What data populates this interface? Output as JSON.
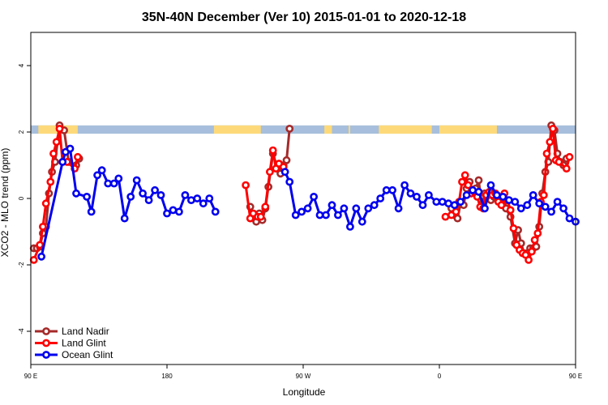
{
  "chart_data": {
    "type": "line",
    "title": "35N-40N December (Ver 10)   2015-01-01 to 2020-12-18",
    "xlabel": "Longitude",
    "ylabel": "XCO2 - MLO trend (ppm)",
    "xlim": [
      90,
      450
    ],
    "ylim": [
      -5,
      5
    ],
    "x_ticks": [
      {
        "value": 90,
        "label": "90 E"
      },
      {
        "value": 180,
        "label": "180"
      },
      {
        "value": 270,
        "label": "90 W"
      },
      {
        "value": 360,
        "label": "0"
      },
      {
        "value": 450,
        "label": "90 E"
      },
      {
        "value": 540,
        "label": "180"
      }
    ],
    "y_ticks": [
      {
        "value": -4,
        "label": "-4"
      },
      {
        "value": -2,
        "label": "-2"
      },
      {
        "value": 0,
        "label": "0"
      },
      {
        "value": 2,
        "label": "2"
      },
      {
        "value": 4,
        "label": "4"
      }
    ],
    "grid": false,
    "legend_position": "bottom-left",
    "land_ocean_strip": {
      "y_min": 1.95,
      "y_max": 2.2,
      "ocean_color": "#a7bfdc",
      "land_color": "#fdd97a",
      "land_ranges": [
        [
          95,
          121
        ],
        [
          211,
          242
        ],
        [
          284,
          289
        ],
        [
          300,
          301
        ],
        [
          320,
          355
        ],
        [
          360,
          398
        ],
        [
          466,
          480
        ]
      ]
    },
    "series": [
      {
        "name": "Land Nadir",
        "color": "#a52a2a",
        "segments": [
          [
            [
              92,
              -1.5
            ],
            [
              94,
              -1.5
            ],
            [
              96,
              -1.45
            ],
            [
              98,
              -1.05
            ],
            [
              100,
              -0.85
            ],
            [
              102,
              0.15
            ],
            [
              104,
              0.8
            ],
            [
              106,
              1.1
            ],
            [
              109,
              2.2
            ],
            [
              112,
              2.05
            ],
            [
              115,
              1.1
            ],
            [
              120,
              1.0
            ],
            [
              122,
              1.2
            ]
          ],
          [
            [
              235,
              -0.25
            ],
            [
              237,
              -0.55
            ],
            [
              239,
              -0.7
            ],
            [
              241,
              -0.45
            ],
            [
              243,
              -0.65
            ],
            [
              245,
              -0.3
            ],
            [
              247,
              0.35
            ],
            [
              250,
              1.35
            ],
            [
              253,
              0.9
            ],
            [
              255,
              0.75
            ],
            [
              257,
              1.0
            ],
            [
              259,
              1.15
            ],
            [
              261,
              2.1
            ]
          ],
          [
            [
              368,
              -0.3
            ],
            [
              370,
              -0.5
            ],
            [
              372,
              -0.6
            ],
            [
              374,
              -0.15
            ],
            [
              376,
              -0.2
            ],
            [
              378,
              0.3
            ],
            [
              380,
              0.5
            ],
            [
              382,
              0.25
            ],
            [
              384,
              0.3
            ],
            [
              386,
              0.55
            ],
            [
              388,
              -0.25
            ],
            [
              390,
              0.15
            ],
            [
              392,
              0.1
            ],
            [
              394,
              -0.05
            ],
            [
              396,
              0.05
            ],
            [
              398,
              0.1
            ],
            [
              400,
              -0.05
            ],
            [
              402,
              -0.2
            ],
            [
              404,
              -0.3
            ],
            [
              407,
              -0.55
            ],
            [
              410,
              -1.35
            ],
            [
              412,
              -0.95
            ],
            [
              414,
              -1.35
            ],
            [
              416,
              -1.65
            ],
            [
              418,
              -1.65
            ],
            [
              420,
              -1.5
            ],
            [
              422,
              -1.5
            ],
            [
              424,
              -1.45
            ],
            [
              426,
              -0.85
            ],
            [
              428,
              0.15
            ],
            [
              430,
              0.8
            ],
            [
              432,
              1.1
            ],
            [
              434,
              2.2
            ],
            [
              436,
              2.05
            ],
            [
              438,
              1.35
            ],
            [
              440,
              1.1
            ],
            [
              442,
              1.0
            ],
            [
              444,
              1.2
            ]
          ]
        ]
      },
      {
        "name": "Land Glint",
        "color": "#ff0000",
        "segments": [
          [
            [
              92,
              -1.85
            ],
            [
              96,
              -1.4
            ],
            [
              98,
              -0.85
            ],
            [
              100,
              -0.15
            ],
            [
              103,
              0.5
            ],
            [
              105,
              1.35
            ],
            [
              107,
              1.7
            ],
            [
              109,
              2.1
            ],
            [
              111,
              1.1
            ],
            [
              114,
              1.1
            ],
            [
              119,
              0.9
            ],
            [
              121,
              1.25
            ]
          ],
          [
            [
              232,
              0.4
            ],
            [
              235,
              -0.6
            ],
            [
              237,
              -0.45
            ],
            [
              240,
              -0.55
            ],
            [
              242,
              -0.55
            ],
            [
              245,
              -0.25
            ],
            [
              248,
              0.8
            ],
            [
              250,
              1.45
            ],
            [
              252,
              0.9
            ],
            [
              254,
              1.05
            ],
            [
              257,
              0.95
            ]
          ],
          [
            [
              364,
              -0.55
            ],
            [
              368,
              -0.5
            ],
            [
              371,
              -0.4
            ],
            [
              373,
              -0.1
            ],
            [
              375,
              0.5
            ],
            [
              377,
              0.7
            ],
            [
              379,
              0.4
            ],
            [
              381,
              0.15
            ],
            [
              383,
              0.2
            ],
            [
              385,
              0.05
            ],
            [
              387,
              -0.25
            ],
            [
              389,
              -0.3
            ],
            [
              391,
              0.1
            ],
            [
              393,
              0.2
            ],
            [
              395,
              0.1
            ],
            [
              397,
              0.15
            ],
            [
              399,
              -0.1
            ],
            [
              401,
              -0.2
            ],
            [
              403,
              0.15
            ],
            [
              405,
              -0.05
            ],
            [
              407,
              -0.35
            ],
            [
              409,
              -0.9
            ],
            [
              411,
              -1.4
            ],
            [
              413,
              -1.55
            ],
            [
              415,
              -1.65
            ],
            [
              417,
              -1.7
            ],
            [
              419,
              -1.85
            ],
            [
              421,
              -1.6
            ],
            [
              423,
              -1.25
            ],
            [
              425,
              -1.05
            ],
            [
              427,
              -0.1
            ],
            [
              429,
              0.1
            ],
            [
              431,
              1.35
            ],
            [
              433,
              1.7
            ],
            [
              435,
              2.1
            ],
            [
              437,
              1.15
            ],
            [
              439,
              1.1
            ],
            [
              444,
              0.9
            ],
            [
              446,
              1.25
            ]
          ]
        ]
      },
      {
        "name": "Ocean Glint",
        "color": "#0000ee",
        "segments": [
          [
            [
              97,
              -1.75
            ],
            [
              111,
              1.1
            ],
            [
              113,
              1.4
            ],
            [
              116,
              1.5
            ],
            [
              120,
              0.15
            ],
            [
              127,
              0.05
            ],
            [
              130,
              -0.4
            ],
            [
              134,
              0.7
            ],
            [
              137,
              0.85
            ],
            [
              141,
              0.45
            ],
            [
              145,
              0.45
            ],
            [
              148,
              0.6
            ],
            [
              152,
              -0.6
            ],
            [
              156,
              0.05
            ],
            [
              160,
              0.55
            ],
            [
              164,
              0.15
            ],
            [
              168,
              -0.05
            ],
            [
              172,
              0.25
            ],
            [
              176,
              0.1
            ],
            [
              180,
              -0.45
            ],
            [
              184,
              -0.35
            ],
            [
              188,
              -0.4
            ],
            [
              192,
              0.1
            ],
            [
              196,
              -0.05
            ],
            [
              200,
              0.0
            ],
            [
              204,
              -0.15
            ],
            [
              208,
              0.0
            ],
            [
              212,
              -0.4
            ]
          ],
          [
            [
              258,
              0.8
            ],
            [
              261,
              0.5
            ],
            [
              265,
              -0.5
            ],
            [
              269,
              -0.4
            ],
            [
              273,
              -0.3
            ],
            [
              277,
              0.05
            ],
            [
              281,
              -0.5
            ],
            [
              285,
              -0.5
            ],
            [
              289,
              -0.2
            ],
            [
              293,
              -0.5
            ],
            [
              297,
              -0.3
            ],
            [
              301,
              -0.85
            ],
            [
              305,
              -0.3
            ],
            [
              309,
              -0.7
            ],
            [
              313,
              -0.3
            ],
            [
              317,
              -0.2
            ],
            [
              321,
              0.0
            ],
            [
              325,
              0.25
            ],
            [
              329,
              0.25
            ],
            [
              333,
              -0.3
            ],
            [
              337,
              0.4
            ],
            [
              341,
              0.15
            ],
            [
              345,
              0.05
            ],
            [
              349,
              -0.2
            ],
            [
              353,
              0.1
            ],
            [
              358,
              -0.1
            ],
            [
              362,
              -0.1
            ],
            [
              366,
              -0.15
            ],
            [
              370,
              -0.2
            ],
            [
              374,
              -0.1
            ],
            [
              378,
              0.1
            ],
            [
              382,
              0.25
            ],
            [
              386,
              0.2
            ],
            [
              390,
              -0.3
            ],
            [
              394,
              0.4
            ],
            [
              398,
              0.1
            ],
            [
              402,
              0.05
            ],
            [
              406,
              -0.05
            ],
            [
              410,
              -0.1
            ],
            [
              414,
              -0.3
            ],
            [
              418,
              -0.2
            ],
            [
              422,
              0.1
            ],
            [
              426,
              -0.15
            ],
            [
              430,
              -0.25
            ],
            [
              434,
              -0.4
            ],
            [
              438,
              -0.1
            ],
            [
              442,
              -0.3
            ],
            [
              446,
              -0.6
            ],
            [
              450,
              -0.7
            ]
          ]
        ]
      }
    ]
  }
}
